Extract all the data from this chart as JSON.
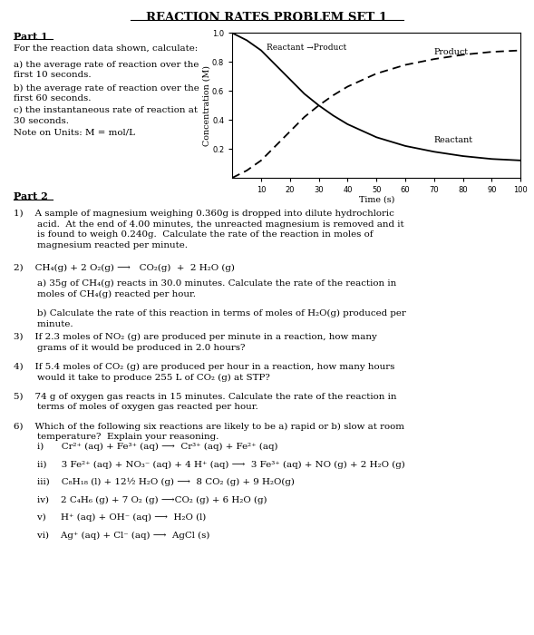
{
  "title": "REACTION RATES PROBLEM SET 1",
  "bg_color": "#ffffff",
  "text_color": "#000000",
  "fig_width": 5.89,
  "fig_height": 7.0,
  "graph": {
    "reactant_x": [
      0,
      5,
      10,
      15,
      20,
      25,
      30,
      35,
      40,
      50,
      60,
      70,
      80,
      90,
      100
    ],
    "reactant_y": [
      1.0,
      0.95,
      0.88,
      0.78,
      0.68,
      0.58,
      0.5,
      0.43,
      0.37,
      0.28,
      0.22,
      0.18,
      0.15,
      0.13,
      0.12
    ],
    "product_x": [
      0,
      5,
      10,
      15,
      20,
      25,
      30,
      35,
      40,
      50,
      60,
      70,
      80,
      90,
      100
    ],
    "product_y": [
      0.0,
      0.05,
      0.12,
      0.22,
      0.32,
      0.42,
      0.5,
      0.57,
      0.63,
      0.72,
      0.78,
      0.82,
      0.85,
      0.87,
      0.88
    ],
    "xlabel": "Time (s)",
    "ylabel": "Concentration (M)",
    "xlim": [
      0,
      100
    ],
    "ylim": [
      0,
      1.0
    ],
    "xticks": [
      10,
      20,
      30,
      40,
      50,
      60,
      70,
      80,
      90,
      100
    ],
    "yticks": [
      0.2,
      0.4,
      0.6,
      0.8,
      1.0
    ],
    "reactant_label": "Reactant",
    "product_label": "Product",
    "arrow_label": "Reactant →Product"
  },
  "part1_header": "Part 1",
  "part1_intro": "For the reaction data shown, calculate:",
  "part1_a": "a) the average rate of reaction over the\nfirst 10 seconds.",
  "part1_b": "b) the average rate of reaction over the\nfirst 60 seconds.",
  "part1_c": "c) the instantaneous rate of reaction at\n30 seconds.",
  "part1_note": "Note on Units: M = mol/L",
  "part2_header": "Part 2",
  "p2_1": "1)    A sample of magnesium weighing 0.360g is dropped into dilute hydrochloric\n        acid.  At the end of 4.00 minutes, the unreacted magnesium is removed and it\n        is found to weigh 0.240g.  Calculate the rate of the reaction in moles of\n        magnesium reacted per minute.",
  "p2_2eq": "2)    CH₄(g) + 2 O₂(g) ⟶   CO₂(g)  +  2 H₂O (g)",
  "p2_2a": "        a) 35g of CH₄(g) reacts in 30.0 minutes. Calculate the rate of the reaction in\n        moles of CH₄(g) reacted per hour.",
  "p2_2b": "        b) Calculate the rate of this reaction in terms of moles of H₂O(g) produced per\n        minute.",
  "p2_3": "3)    If 2.3 moles of NO₂ (g) are produced per minute in a reaction, how many\n        grams of it would be produced in 2.0 hours?",
  "p2_4": "4)    If 5.4 moles of CO₂ (g) are produced per hour in a reaction, how many hours\n        would it take to produce 255 L of CO₂ (g) at STP?",
  "p2_5": "5)    74 g of oxygen gas reacts in 15 minutes. Calculate the rate of the reaction in\n        terms of moles of oxygen gas reacted per hour.",
  "p2_6": "6)    Which of the following six reactions are likely to be a) rapid or b) slow at room\n        temperature?  Explain your reasoning.",
  "p2_6i": "        i)      Cr²⁺ (aq) + Fe³⁺ (aq) ⟶  Cr³⁺ (aq) + Fe²⁺ (aq)",
  "p2_6ii": "        ii)     3 Fe²⁺ (aq) + NO₃⁻ (aq) + 4 H⁺ (aq) ⟶  3 Fe³⁺ (aq) + NO (g) + 2 H₂O (g)",
  "p2_6iii": "        iii)    C₈H₁₈ (l) + 12½ H₂O (g) ⟶  8 CO₂ (g) + 9 H₂O(g)",
  "p2_6iv": "        iv)    2 C₄H₆ (g) + 7 O₂ (g) ⟶CO₂ (g) + 6 H₂O (g)",
  "p2_6v": "        v)     H⁺ (aq) + OH⁻ (aq) ⟶  H₂O (l)",
  "p2_6vi": "        vi)    Ag⁺ (aq) + Cl⁻ (aq) ⟶  AgCl (s)"
}
